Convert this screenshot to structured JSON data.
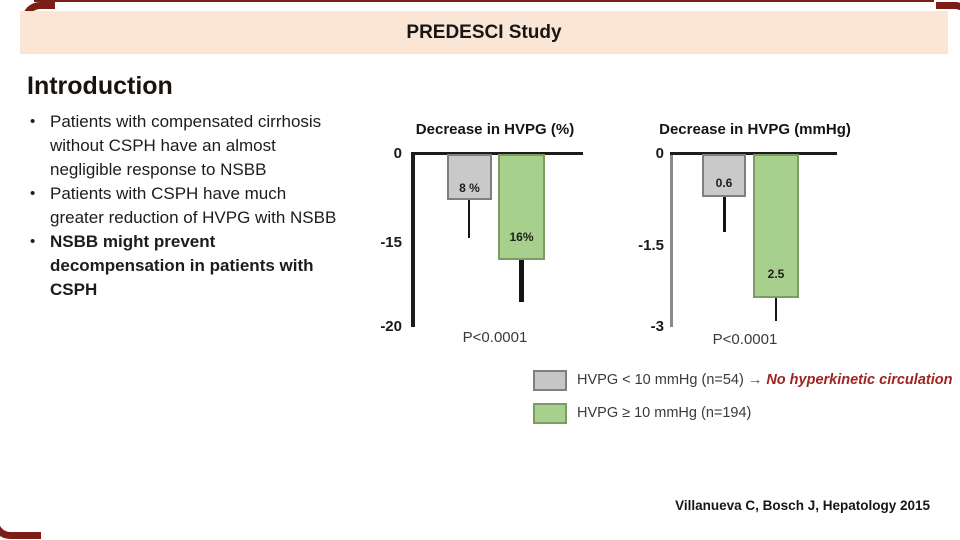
{
  "header": {
    "title": "PREDESCI Study"
  },
  "intro": {
    "heading": "Introduction",
    "bullet_glyph": "•",
    "bullets": [
      {
        "text": "Patients with compensated cirrhosis without CSPH have an almost negligible response to NSBB",
        "bold": false
      },
      {
        "text": "Patients with CSPH have much greater reduction of HVPG with NSBB",
        "bold": false
      },
      {
        "text": "NSBB might prevent decompensation in patients with CSPH",
        "bold": true
      }
    ]
  },
  "chart_data": [
    {
      "type": "bar",
      "title": "Decrease in HVPG (%)",
      "categories": [
        "HVPG < 10 mmHg",
        "HVPG ≥ 10 mmHg"
      ],
      "values": [
        -8,
        -16
      ],
      "bar_labels": [
        "8 %",
        "16%"
      ],
      "error_whisker_ends": [
        -14,
        -18.5
      ],
      "yticks": [
        "0",
        "-15",
        "-20"
      ],
      "ylim": [
        -20,
        0
      ],
      "p_value": "P<0.0001",
      "grid": false,
      "bar_colors": [
        "#c9c9c9",
        "#a6d08c"
      ]
    },
    {
      "type": "bar",
      "title": "Decrease in HVPG (mmHg)",
      "categories": [
        "HVPG < 10 mmHg",
        "HVPG ≥ 10 mmHg"
      ],
      "values": [
        -0.6,
        -2.5
      ],
      "bar_labels": [
        "0.6",
        "2.5"
      ],
      "error_whisker_ends": [
        -1.3,
        -2.9
      ],
      "yticks": [
        "0",
        "-1.5",
        "-3"
      ],
      "ylim": [
        -3,
        0
      ],
      "p_value": "P<0.0001",
      "grid": false,
      "bar_colors": [
        "#c9c9c9",
        "#a6d08c"
      ]
    }
  ],
  "legend": {
    "items": [
      {
        "swatch_color": "#c6c6c6",
        "label": "HVPG < 10 mmHg (n=54)",
        "arrow": "→",
        "note": "No hyperkinetic circulation"
      },
      {
        "swatch_color": "#a6d08c",
        "label": "HVPG ≥ 10 mmHg (n=194)",
        "arrow": "",
        "note": ""
      }
    ]
  },
  "citation": "Villanueva C, Bosch J, Hepatology 2015",
  "colors": {
    "header_bg": "#fbe5d5",
    "frame_red": "#7b1e16",
    "note_red": "#9e2420",
    "bar_gray": "#c9c9c9",
    "bar_green": "#a6d08c"
  }
}
